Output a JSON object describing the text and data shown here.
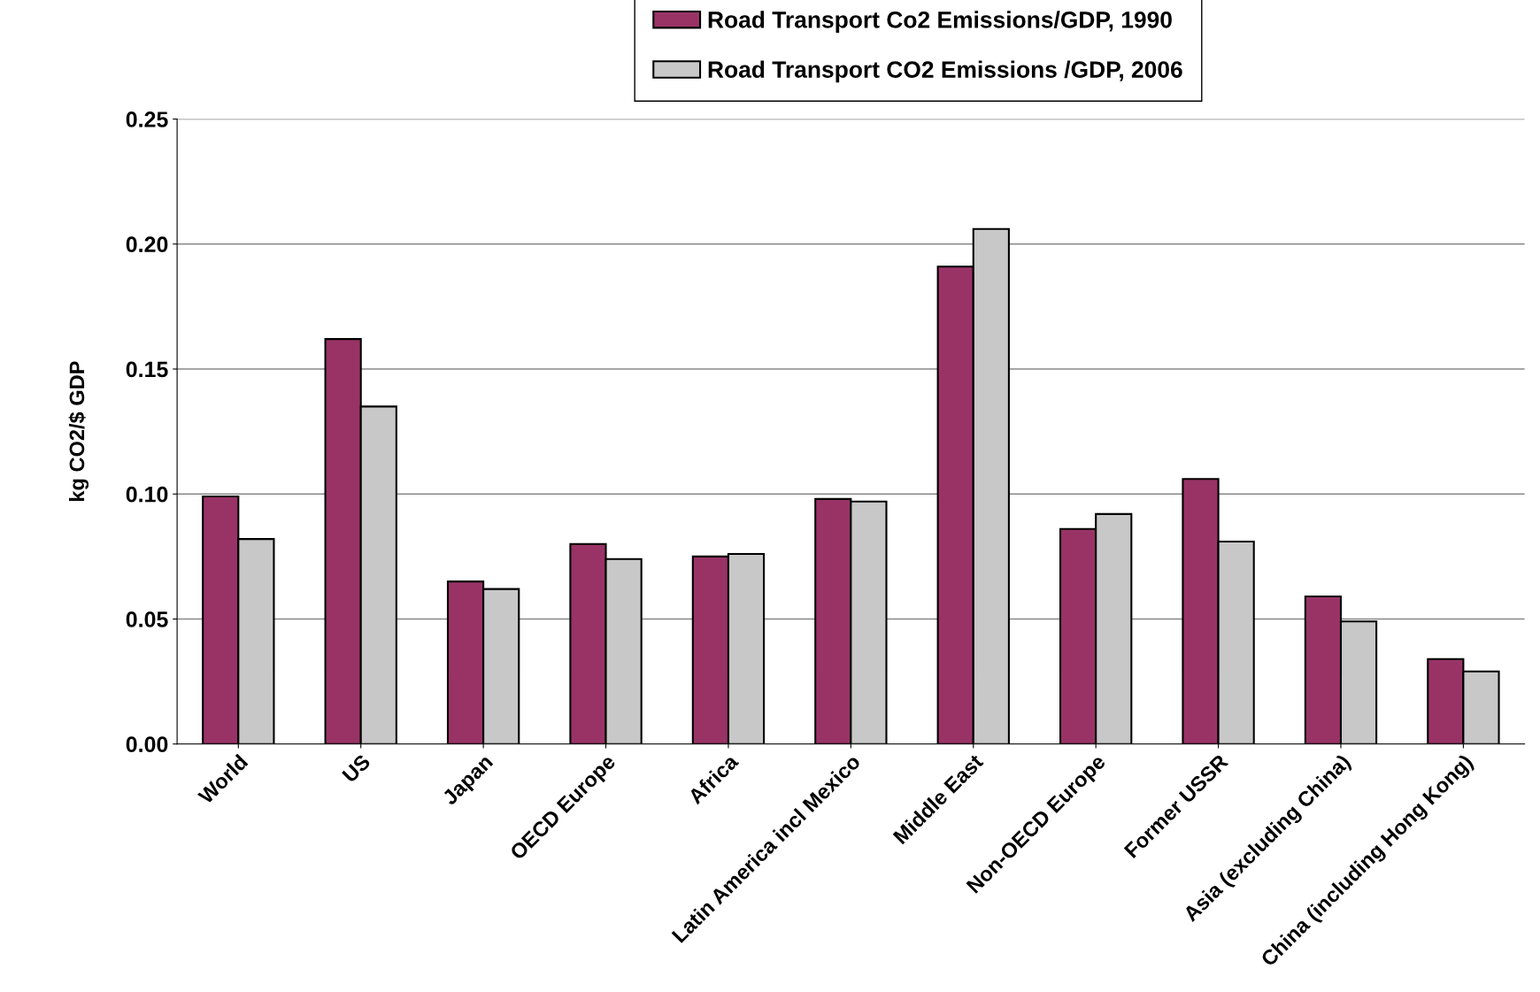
{
  "chart_data": {
    "type": "bar",
    "ylabel": "kg CO2/$ GDP",
    "categories": [
      "World",
      "US",
      "Japan",
      "OECD Europe",
      "Africa",
      "Latin America incl Mexico",
      "Middle East",
      "Non-OECD Europe",
      "Former USSR",
      "Asia (excluding China)",
      "China (including Hong Kong)"
    ],
    "series": [
      {
        "name": "Road Transport Co2 Emissions/GDP, 1990",
        "color": "#993366",
        "values": [
          0.099,
          0.162,
          0.065,
          0.08,
          0.075,
          0.098,
          0.191,
          0.086,
          0.106,
          0.059,
          0.034
        ]
      },
      {
        "name": "Road Transport CO2 Emissions /GDP, 2006",
        "color": "#c8c8c8",
        "values": [
          0.082,
          0.135,
          0.062,
          0.074,
          0.076,
          0.097,
          0.206,
          0.092,
          0.081,
          0.049,
          0.029
        ]
      }
    ],
    "ylim": [
      0,
      0.25
    ],
    "yticks": [
      {
        "value": 0,
        "label": "0.00"
      },
      {
        "value": 0.05,
        "label": "0.05"
      },
      {
        "value": 0.1,
        "label": "0.10"
      },
      {
        "value": 0.15,
        "label": "0.15"
      },
      {
        "value": 0.2,
        "label": "0.20"
      },
      {
        "value": 0.25,
        "label": "0.25"
      }
    ],
    "grid": "y",
    "legend": "top"
  }
}
